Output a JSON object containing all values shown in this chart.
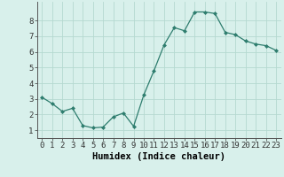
{
  "x": [
    0,
    1,
    2,
    3,
    4,
    5,
    6,
    7,
    8,
    9,
    10,
    11,
    12,
    13,
    14,
    15,
    16,
    17,
    18,
    19,
    20,
    21,
    22,
    23
  ],
  "y": [
    3.1,
    2.7,
    2.2,
    2.4,
    1.3,
    1.15,
    1.2,
    1.85,
    2.1,
    1.25,
    3.25,
    4.8,
    6.45,
    7.55,
    7.35,
    8.55,
    8.55,
    8.45,
    7.25,
    7.1,
    6.7,
    6.5,
    6.4,
    6.1
  ],
  "xlabel": "Humidex (Indice chaleur)",
  "ylim": [
    0.5,
    9.2
  ],
  "xlim": [
    -0.5,
    23.5
  ],
  "yticks": [
    1,
    2,
    3,
    4,
    5,
    6,
    7,
    8
  ],
  "xticks": [
    0,
    1,
    2,
    3,
    4,
    5,
    6,
    7,
    8,
    9,
    10,
    11,
    12,
    13,
    14,
    15,
    16,
    17,
    18,
    19,
    20,
    21,
    22,
    23
  ],
  "line_color": "#2e7d6e",
  "marker": "D",
  "marker_size": 2.0,
  "bg_color": "#d8f0eb",
  "grid_color": "#b5d9d0",
  "tick_label_fontsize": 6.5,
  "xlabel_fontsize": 7.5,
  "line_width": 0.9
}
